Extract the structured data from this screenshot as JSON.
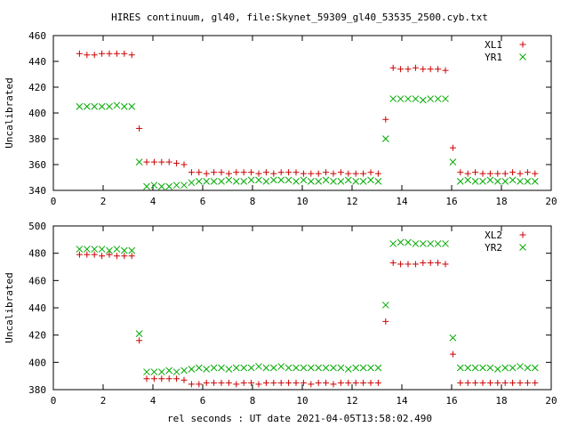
{
  "figure": {
    "title": "HIRES continuum, gl40, file:Skynet_59309_gl40_53535_2500.cyb.txt",
    "xlabel": "rel seconds : UT date 2021-04-05T13:58:02.490"
  },
  "colors": {
    "series_a": "#cc0000",
    "series_b": "#00aa00",
    "axis": "#000000"
  },
  "chart_data": [
    {
      "type": "scatter",
      "ylabel": "Uncalibrated",
      "xlim": [
        0,
        20
      ],
      "ylim": [
        340,
        460
      ],
      "xticks": [
        0,
        2,
        4,
        6,
        8,
        10,
        12,
        14,
        16,
        18,
        20
      ],
      "yticks": [
        340,
        360,
        380,
        400,
        420,
        440,
        460
      ],
      "legend_position": "top-right",
      "series": [
        {
          "name": "XL1",
          "marker": "plus",
          "points": [
            [
              1.05,
              446
            ],
            [
              1.35,
              445
            ],
            [
              1.65,
              445
            ],
            [
              1.95,
              446
            ],
            [
              2.25,
              446
            ],
            [
              2.55,
              446
            ],
            [
              2.85,
              446
            ],
            [
              3.15,
              445
            ],
            [
              3.45,
              388
            ],
            [
              3.75,
              362
            ],
            [
              4.05,
              362
            ],
            [
              4.35,
              362
            ],
            [
              4.65,
              362
            ],
            [
              4.95,
              361
            ],
            [
              5.25,
              360
            ],
            [
              5.55,
              354
            ],
            [
              5.85,
              354
            ],
            [
              6.15,
              353
            ],
            [
              6.45,
              354
            ],
            [
              6.75,
              354
            ],
            [
              7.05,
              353
            ],
            [
              7.35,
              354
            ],
            [
              7.65,
              354
            ],
            [
              7.95,
              354
            ],
            [
              8.25,
              353
            ],
            [
              8.55,
              354
            ],
            [
              8.85,
              353
            ],
            [
              9.15,
              354
            ],
            [
              9.45,
              354
            ],
            [
              9.75,
              354
            ],
            [
              10.05,
              353
            ],
            [
              10.35,
              353
            ],
            [
              10.65,
              353
            ],
            [
              10.95,
              354
            ],
            [
              11.25,
              353
            ],
            [
              11.55,
              354
            ],
            [
              11.85,
              353
            ],
            [
              12.15,
              353
            ],
            [
              12.45,
              353
            ],
            [
              12.75,
              354
            ],
            [
              13.05,
              353
            ],
            [
              13.35,
              395
            ],
            [
              13.65,
              435
            ],
            [
              13.95,
              434
            ],
            [
              14.25,
              434
            ],
            [
              14.55,
              435
            ],
            [
              14.85,
              434
            ],
            [
              15.15,
              434
            ],
            [
              15.45,
              434
            ],
            [
              15.75,
              433
            ],
            [
              16.05,
              373
            ],
            [
              16.35,
              354
            ],
            [
              16.65,
              353
            ],
            [
              16.95,
              354
            ],
            [
              17.25,
              353
            ],
            [
              17.55,
              353
            ],
            [
              17.85,
              353
            ],
            [
              18.15,
              353
            ],
            [
              18.45,
              354
            ],
            [
              18.75,
              353
            ],
            [
              19.05,
              354
            ],
            [
              19.35,
              353
            ]
          ]
        },
        {
          "name": "YR1",
          "marker": "cross",
          "points": [
            [
              1.05,
              405
            ],
            [
              1.35,
              405
            ],
            [
              1.65,
              405
            ],
            [
              1.95,
              405
            ],
            [
              2.25,
              405
            ],
            [
              2.55,
              406
            ],
            [
              2.85,
              405
            ],
            [
              3.15,
              405
            ],
            [
              3.45,
              362
            ],
            [
              3.75,
              343
            ],
            [
              4.05,
              344
            ],
            [
              4.35,
              343
            ],
            [
              4.65,
              343
            ],
            [
              4.95,
              344
            ],
            [
              5.25,
              344
            ],
            [
              5.55,
              346
            ],
            [
              5.85,
              347
            ],
            [
              6.15,
              347
            ],
            [
              6.45,
              347
            ],
            [
              6.75,
              347
            ],
            [
              7.05,
              348
            ],
            [
              7.35,
              347
            ],
            [
              7.65,
              347
            ],
            [
              7.95,
              348
            ],
            [
              8.25,
              348
            ],
            [
              8.55,
              347
            ],
            [
              8.85,
              348
            ],
            [
              9.15,
              348
            ],
            [
              9.45,
              348
            ],
            [
              9.75,
              347
            ],
            [
              10.05,
              348
            ],
            [
              10.35,
              347
            ],
            [
              10.65,
              347
            ],
            [
              10.95,
              348
            ],
            [
              11.25,
              347
            ],
            [
              11.55,
              347
            ],
            [
              11.85,
              348
            ],
            [
              12.15,
              347
            ],
            [
              12.45,
              347
            ],
            [
              12.75,
              348
            ],
            [
              13.05,
              347
            ],
            [
              13.35,
              380
            ],
            [
              13.65,
              411
            ],
            [
              13.95,
              411
            ],
            [
              14.25,
              411
            ],
            [
              14.55,
              411
            ],
            [
              14.85,
              410
            ],
            [
              15.15,
              411
            ],
            [
              15.45,
              411
            ],
            [
              15.75,
              411
            ],
            [
              16.05,
              362
            ],
            [
              16.35,
              347
            ],
            [
              16.65,
              348
            ],
            [
              16.95,
              347
            ],
            [
              17.25,
              347
            ],
            [
              17.55,
              348
            ],
            [
              17.85,
              347
            ],
            [
              18.15,
              347
            ],
            [
              18.45,
              348
            ],
            [
              18.75,
              347
            ],
            [
              19.05,
              347
            ],
            [
              19.35,
              347
            ]
          ]
        }
      ]
    },
    {
      "type": "scatter",
      "ylabel": "Uncalibrated",
      "xlim": [
        0,
        20
      ],
      "ylim": [
        380,
        500
      ],
      "xticks": [
        0,
        2,
        4,
        6,
        8,
        10,
        12,
        14,
        16,
        18,
        20
      ],
      "yticks": [
        380,
        400,
        420,
        440,
        460,
        480,
        500
      ],
      "legend_position": "top-right",
      "series": [
        {
          "name": "XL2",
          "marker": "plus",
          "points": [
            [
              1.05,
              479
            ],
            [
              1.35,
              479
            ],
            [
              1.65,
              479
            ],
            [
              1.95,
              478
            ],
            [
              2.25,
              479
            ],
            [
              2.55,
              478
            ],
            [
              2.85,
              478
            ],
            [
              3.15,
              478
            ],
            [
              3.45,
              416
            ],
            [
              3.75,
              388
            ],
            [
              4.05,
              388
            ],
            [
              4.35,
              388
            ],
            [
              4.65,
              388
            ],
            [
              4.95,
              388
            ],
            [
              5.25,
              387
            ],
            [
              5.55,
              384
            ],
            [
              5.85,
              384
            ],
            [
              6.15,
              385
            ],
            [
              6.45,
              385
            ],
            [
              6.75,
              385
            ],
            [
              7.05,
              385
            ],
            [
              7.35,
              384
            ],
            [
              7.65,
              385
            ],
            [
              7.95,
              385
            ],
            [
              8.25,
              384
            ],
            [
              8.55,
              385
            ],
            [
              8.85,
              385
            ],
            [
              9.15,
              385
            ],
            [
              9.45,
              385
            ],
            [
              9.75,
              385
            ],
            [
              10.05,
              385
            ],
            [
              10.35,
              384
            ],
            [
              10.65,
              385
            ],
            [
              10.95,
              385
            ],
            [
              11.25,
              384
            ],
            [
              11.55,
              385
            ],
            [
              11.85,
              385
            ],
            [
              12.15,
              385
            ],
            [
              12.45,
              385
            ],
            [
              12.75,
              385
            ],
            [
              13.05,
              385
            ],
            [
              13.35,
              430
            ],
            [
              13.65,
              473
            ],
            [
              13.95,
              472
            ],
            [
              14.25,
              472
            ],
            [
              14.55,
              472
            ],
            [
              14.85,
              473
            ],
            [
              15.15,
              473
            ],
            [
              15.45,
              473
            ],
            [
              15.75,
              472
            ],
            [
              16.05,
              406
            ],
            [
              16.35,
              385
            ],
            [
              16.65,
              385
            ],
            [
              16.95,
              385
            ],
            [
              17.25,
              385
            ],
            [
              17.55,
              385
            ],
            [
              17.85,
              385
            ],
            [
              18.15,
              385
            ],
            [
              18.45,
              385
            ],
            [
              18.75,
              385
            ],
            [
              19.05,
              385
            ],
            [
              19.35,
              385
            ]
          ]
        },
        {
          "name": "YR2",
          "marker": "cross",
          "points": [
            [
              1.05,
              483
            ],
            [
              1.35,
              483
            ],
            [
              1.65,
              483
            ],
            [
              1.95,
              483
            ],
            [
              2.25,
              482
            ],
            [
              2.55,
              483
            ],
            [
              2.85,
              482
            ],
            [
              3.15,
              482
            ],
            [
              3.45,
              421
            ],
            [
              3.75,
              393
            ],
            [
              4.05,
              393
            ],
            [
              4.35,
              393
            ],
            [
              4.65,
              394
            ],
            [
              4.95,
              393
            ],
            [
              5.25,
              394
            ],
            [
              5.55,
              395
            ],
            [
              5.85,
              396
            ],
            [
              6.15,
              395
            ],
            [
              6.45,
              396
            ],
            [
              6.75,
              396
            ],
            [
              7.05,
              395
            ],
            [
              7.35,
              396
            ],
            [
              7.65,
              396
            ],
            [
              7.95,
              396
            ],
            [
              8.25,
              397
            ],
            [
              8.55,
              396
            ],
            [
              8.85,
              396
            ],
            [
              9.15,
              397
            ],
            [
              9.45,
              396
            ],
            [
              9.75,
              396
            ],
            [
              10.05,
              396
            ],
            [
              10.35,
              396
            ],
            [
              10.65,
              396
            ],
            [
              10.95,
              396
            ],
            [
              11.25,
              396
            ],
            [
              11.55,
              396
            ],
            [
              11.85,
              395
            ],
            [
              12.15,
              396
            ],
            [
              12.45,
              396
            ],
            [
              12.75,
              396
            ],
            [
              13.05,
              396
            ],
            [
              13.35,
              442
            ],
            [
              13.65,
              487
            ],
            [
              13.95,
              488
            ],
            [
              14.25,
              488
            ],
            [
              14.55,
              487
            ],
            [
              14.85,
              487
            ],
            [
              15.15,
              487
            ],
            [
              15.45,
              487
            ],
            [
              15.75,
              487
            ],
            [
              16.05,
              418
            ],
            [
              16.35,
              396
            ],
            [
              16.65,
              396
            ],
            [
              16.95,
              396
            ],
            [
              17.25,
              396
            ],
            [
              17.55,
              396
            ],
            [
              17.85,
              395
            ],
            [
              18.15,
              396
            ],
            [
              18.45,
              396
            ],
            [
              18.75,
              397
            ],
            [
              19.05,
              396
            ],
            [
              19.35,
              396
            ]
          ]
        }
      ]
    }
  ]
}
